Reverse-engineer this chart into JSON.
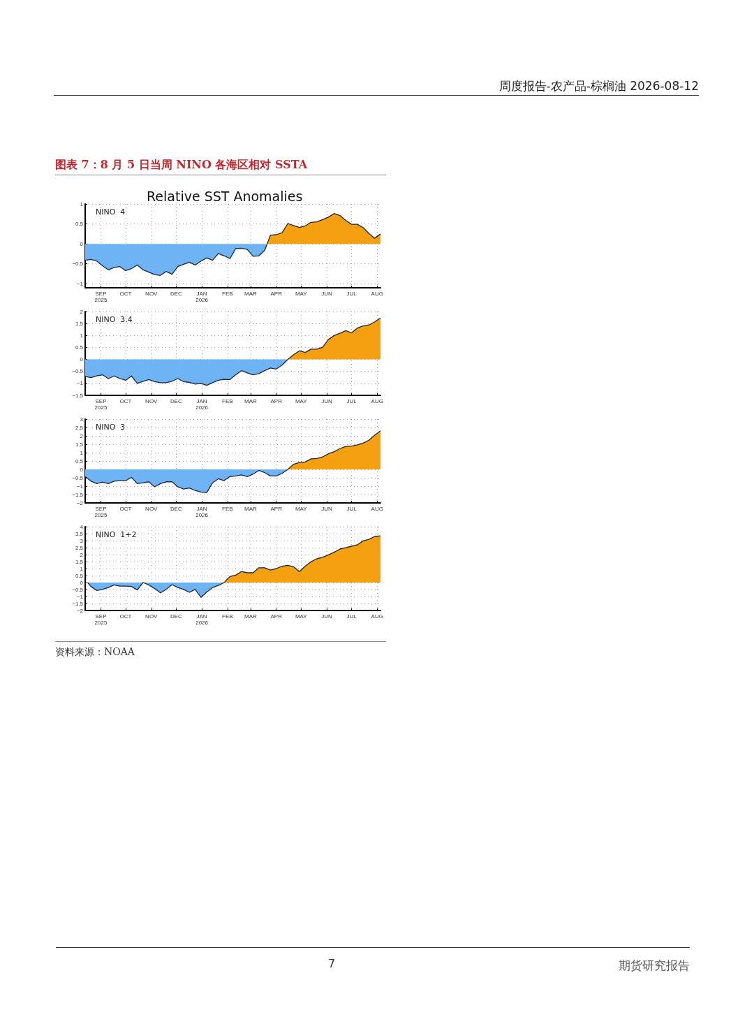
{
  "chart_data": [
    {
      "type": "area",
      "title": "Relative SST Anomalies",
      "subtitle": "NINO  4",
      "annotations": [
        "周度报告-农产品-棕榈油 2026-08-12",
        "图表 7：8 月 5 日当周 NINO 各海区相对 SSTA"
      ],
      "xlim": [
        "2025-08-13",
        "2026-08-05"
      ],
      "xticks": [
        {
          "value": "2025-09-01",
          "label": "SEP\n2025"
        },
        {
          "value": "2025-10-01",
          "label": "OCT"
        },
        {
          "value": "2025-11-01",
          "label": "NOV"
        },
        {
          "value": "2025-12-01",
          "label": "DEC"
        },
        {
          "value": "2026-01-01",
          "label": "JAN\n2026"
        },
        {
          "value": "2026-02-01",
          "label": "FEB"
        },
        {
          "value": "2026-03-01",
          "label": "MAR"
        },
        {
          "value": "2026-04-01",
          "label": "APR"
        },
        {
          "value": "2026-05-01",
          "label": "MAY"
        },
        {
          "value": "2026-06-01",
          "label": "JUN"
        },
        {
          "value": "2026-07-01",
          "label": "JUL"
        },
        {
          "value": "2026-08-01",
          "label": "AUG"
        }
      ],
      "ylim": [
        -1.1,
        1
      ],
      "yticks": [
        -1,
        -0.5,
        0,
        0.5,
        1
      ],
      "grid": true,
      "marker": "none",
      "series": [
        {
          "color": "#6eb4f4",
          "x": [
            "2025-08-13",
            "2025-08-20",
            "2025-08-27",
            "2025-09-03",
            "2025-09-10",
            "2025-09-17",
            "2025-09-24",
            "2025-10-01",
            "2025-10-08",
            "2025-10-15",
            "2025-10-22",
            "2025-10-29",
            "2025-11-05",
            "2025-11-12",
            "2025-11-19",
            "2025-11-26",
            "2025-12-03",
            "2025-12-10",
            "2025-12-17",
            "2025-12-24",
            "2025-12-31",
            "2026-01-07",
            "2026-01-14",
            "2026-01-21",
            "2026-01-28",
            "2026-02-04",
            "2026-02-11",
            "2026-02-18",
            "2026-02-25",
            "2026-03-04",
            "2026-03-11",
            "2026-03-18",
            "2026-03-21"
          ],
          "values": [
            -0.41,
            -0.39,
            -0.43,
            -0.55,
            -0.65,
            -0.59,
            -0.57,
            -0.67,
            -0.62,
            -0.53,
            -0.65,
            -0.71,
            -0.77,
            -0.79,
            -0.69,
            -0.76,
            -0.57,
            -0.51,
            -0.46,
            -0.53,
            -0.43,
            -0.35,
            -0.41,
            -0.24,
            -0.3,
            -0.37,
            -0.12,
            -0.11,
            -0.14,
            -0.31,
            -0.3,
            -0.16,
            0
          ]
        },
        {
          "color": "#f5a010",
          "x": [
            "2026-03-21",
            "2026-03-25",
            "2026-04-01",
            "2026-04-08",
            "2026-04-15",
            "2026-04-22",
            "2026-04-29",
            "2026-05-06",
            "2026-05-13",
            "2026-05-20",
            "2026-05-27",
            "2026-06-03",
            "2026-06-10",
            "2026-06-17",
            "2026-06-24",
            "2026-07-01",
            "2026-07-08",
            "2026-07-15",
            "2026-07-22",
            "2026-07-29",
            "2026-08-05"
          ],
          "values": [
            0,
            0.22,
            0.23,
            0.28,
            0.51,
            0.46,
            0.41,
            0.45,
            0.54,
            0.55,
            0.61,
            0.67,
            0.76,
            0.71,
            0.59,
            0.49,
            0.49,
            0.41,
            0.26,
            0.14,
            0.25
          ]
        }
      ]
    },
    {
      "type": "area",
      "subtitle": "NINO  3.4",
      "xlim": [
        "2025-08-13",
        "2026-08-05"
      ],
      "xticks": [
        {
          "value": "2025-09-01",
          "label": "SEP\n2025"
        },
        {
          "value": "2025-10-01",
          "label": "OCT"
        },
        {
          "value": "2025-11-01",
          "label": "NOV"
        },
        {
          "value": "2025-12-01",
          "label": "DEC"
        },
        {
          "value": "2026-01-01",
          "label": "JAN\n2026"
        },
        {
          "value": "2026-02-01",
          "label": "FEB"
        },
        {
          "value": "2026-03-01",
          "label": "MAR"
        },
        {
          "value": "2026-04-01",
          "label": "APR"
        },
        {
          "value": "2026-05-01",
          "label": "MAY"
        },
        {
          "value": "2026-06-01",
          "label": "JUN"
        },
        {
          "value": "2026-07-01",
          "label": "JUL"
        },
        {
          "value": "2026-08-01",
          "label": "AUG"
        }
      ],
      "ylim": [
        -1.5,
        2
      ],
      "yticks": [
        -1.5,
        -1,
        -0.5,
        0,
        0.5,
        1,
        1.5,
        2
      ],
      "grid": true,
      "marker": "none",
      "series": [
        {
          "color": "#6eb4f4",
          "x": [
            "2025-08-13",
            "2025-08-20",
            "2025-08-27",
            "2025-09-03",
            "2025-09-10",
            "2025-09-17",
            "2025-09-24",
            "2025-10-01",
            "2025-10-08",
            "2025-10-15",
            "2025-10-22",
            "2025-10-29",
            "2025-11-05",
            "2025-11-12",
            "2025-11-19",
            "2025-11-26",
            "2025-12-03",
            "2025-12-10",
            "2025-12-17",
            "2025-12-24",
            "2025-12-31",
            "2026-01-07",
            "2026-01-14",
            "2026-01-21",
            "2026-01-28",
            "2026-02-04",
            "2026-02-11",
            "2026-02-18",
            "2026-02-25",
            "2026-03-04",
            "2026-03-11",
            "2026-03-18",
            "2026-03-25",
            "2026-04-01",
            "2026-04-08",
            "2026-04-15"
          ],
          "values": [
            -0.71,
            -0.76,
            -0.69,
            -0.64,
            -0.8,
            -0.69,
            -0.8,
            -0.87,
            -0.69,
            -1,
            -0.91,
            -0.84,
            -0.93,
            -0.97,
            -0.97,
            -0.91,
            -0.8,
            -0.93,
            -0.96,
            -1.03,
            -1,
            -1.08,
            -0.97,
            -0.87,
            -0.83,
            -0.84,
            -0.64,
            -0.47,
            -0.56,
            -0.64,
            -0.59,
            -0.47,
            -0.36,
            -0.4,
            -0.24,
            0
          ]
        },
        {
          "color": "#f5a010",
          "x": [
            "2026-04-15",
            "2026-04-22",
            "2026-04-29",
            "2026-05-06",
            "2026-05-13",
            "2026-05-20",
            "2026-05-27",
            "2026-06-03",
            "2026-06-10",
            "2026-06-17",
            "2026-06-24",
            "2026-07-01",
            "2026-07-08",
            "2026-07-15",
            "2026-07-22",
            "2026-07-29",
            "2026-08-05"
          ],
          "values": [
            0,
            0.2,
            0.36,
            0.29,
            0.43,
            0.43,
            0.51,
            0.83,
            1,
            1.09,
            1.2,
            1.11,
            1.31,
            1.4,
            1.44,
            1.57,
            1.73
          ]
        }
      ]
    },
    {
      "type": "area",
      "subtitle": "NINO  3",
      "xlim": [
        "2025-08-13",
        "2026-08-05"
      ],
      "xticks": [
        {
          "value": "2025-09-01",
          "label": "SEP\n2025"
        },
        {
          "value": "2025-10-01",
          "label": "OCT"
        },
        {
          "value": "2025-11-01",
          "label": "NOV"
        },
        {
          "value": "2025-12-01",
          "label": "DEC"
        },
        {
          "value": "2026-01-01",
          "label": "JAN\n2026"
        },
        {
          "value": "2026-02-01",
          "label": "FEB"
        },
        {
          "value": "2026-03-01",
          "label": "MAR"
        },
        {
          "value": "2026-04-01",
          "label": "APR"
        },
        {
          "value": "2026-05-01",
          "label": "MAY"
        },
        {
          "value": "2026-06-01",
          "label": "JUN"
        },
        {
          "value": "2026-07-01",
          "label": "JUL"
        },
        {
          "value": "2026-08-01",
          "label": "AUG"
        }
      ],
      "ylim": [
        -2,
        3
      ],
      "yticks": [
        -2,
        -1.5,
        -1,
        -0.5,
        0,
        0.5,
        1,
        1.5,
        2,
        2.5,
        3
      ],
      "grid": true,
      "marker": "none",
      "series": [
        {
          "color": "#6eb4f4",
          "x": [
            "2025-08-13",
            "2025-08-20",
            "2025-08-27",
            "2025-09-03",
            "2025-09-10",
            "2025-09-17",
            "2025-09-24",
            "2025-10-01",
            "2025-10-08",
            "2025-10-15",
            "2025-10-22",
            "2025-10-29",
            "2025-11-05",
            "2025-11-12",
            "2025-11-19",
            "2025-11-26",
            "2025-12-03",
            "2025-12-10",
            "2025-12-17",
            "2025-12-24",
            "2025-12-31",
            "2026-01-07",
            "2026-01-14",
            "2026-01-21",
            "2026-01-28",
            "2026-02-04",
            "2026-02-11",
            "2026-02-18",
            "2026-02-25",
            "2026-03-04",
            "2026-03-11",
            "2026-03-18",
            "2026-03-25",
            "2026-04-01",
            "2026-04-08",
            "2026-04-15"
          ],
          "values": [
            -0.43,
            -0.7,
            -0.85,
            -0.76,
            -0.85,
            -0.7,
            -0.67,
            -0.67,
            -0.48,
            -0.85,
            -0.8,
            -0.74,
            -1.04,
            -0.85,
            -0.74,
            -0.74,
            -1.04,
            -1.17,
            -1.11,
            -1.26,
            -1.35,
            -1.38,
            -0.8,
            -0.56,
            -0.67,
            -0.43,
            -0.39,
            -0.33,
            -0.43,
            -0.28,
            -0.06,
            -0.19,
            -0.39,
            -0.39,
            -0.24,
            0
          ]
        },
        {
          "color": "#f5a010",
          "x": [
            "2026-04-15",
            "2026-04-22",
            "2026-04-29",
            "2026-05-06",
            "2026-05-13",
            "2026-05-20",
            "2026-05-27",
            "2026-06-03",
            "2026-06-10",
            "2026-06-17",
            "2026-06-24",
            "2026-07-01",
            "2026-07-08",
            "2026-07-15",
            "2026-07-22",
            "2026-07-29",
            "2026-08-05"
          ],
          "values": [
            0,
            0.31,
            0.41,
            0.44,
            0.63,
            0.65,
            0.74,
            0.93,
            1.06,
            1.24,
            1.37,
            1.39,
            1.46,
            1.57,
            1.74,
            2.04,
            2.3
          ]
        }
      ]
    },
    {
      "type": "area",
      "subtitle": "NINO  1+2",
      "annotations": [
        "资料来源：NOAA",
        "7",
        "期货研究报告"
      ],
      "xlim": [
        "2025-08-13",
        "2026-08-05"
      ],
      "xticks": [
        {
          "value": "2025-09-01",
          "label": "SEP\n2025"
        },
        {
          "value": "2025-10-01",
          "label": "OCT"
        },
        {
          "value": "2025-11-01",
          "label": "NOV"
        },
        {
          "value": "2025-12-01",
          "label": "DEC"
        },
        {
          "value": "2026-01-01",
          "label": "JAN\n2026"
        },
        {
          "value": "2026-02-01",
          "label": "FEB"
        },
        {
          "value": "2026-03-01",
          "label": "MAR"
        },
        {
          "value": "2026-04-01",
          "label": "APR"
        },
        {
          "value": "2026-05-01",
          "label": "MAY"
        },
        {
          "value": "2026-06-01",
          "label": "JUN"
        },
        {
          "value": "2026-07-01",
          "label": "JUL"
        },
        {
          "value": "2026-08-01",
          "label": "AUG"
        }
      ],
      "ylim": [
        -2,
        4
      ],
      "yticks": [
        -2,
        -1.5,
        -1,
        -0.5,
        0,
        0.5,
        1,
        1.5,
        2,
        2.5,
        3,
        3.5,
        4
      ],
      "grid": true,
      "marker": "none",
      "series": [
        {
          "color": "#6eb4f4",
          "x": [
            "2025-08-16",
            "2025-08-20",
            "2025-08-27",
            "2025-09-03",
            "2025-09-10",
            "2025-09-17",
            "2025-09-24",
            "2025-10-01",
            "2025-10-08",
            "2025-10-15",
            "2025-10-22",
            "2025-10-29",
            "2025-11-05",
            "2025-11-12",
            "2025-11-19",
            "2025-11-26",
            "2025-12-03",
            "2025-12-10",
            "2025-12-17",
            "2025-12-24",
            "2025-12-31",
            "2026-01-07",
            "2026-01-14",
            "2026-01-21",
            "2026-01-28"
          ],
          "values": [
            0,
            -0.28,
            -0.57,
            -0.49,
            -0.36,
            -0.17,
            -0.26,
            -0.26,
            -0.28,
            -0.53,
            0,
            -0.17,
            -0.43,
            -0.74,
            -0.49,
            -0.15,
            -0.36,
            -0.49,
            -0.7,
            -0.49,
            -1.06,
            -0.68,
            -0.36,
            -0.21,
            0
          ]
        },
        {
          "color": "#f5a010",
          "x": [
            "2026-01-28",
            "2026-02-04",
            "2026-02-11",
            "2026-02-18",
            "2026-02-25",
            "2026-03-04",
            "2026-03-11",
            "2026-03-18",
            "2026-03-25",
            "2026-04-01",
            "2026-04-08",
            "2026-04-15",
            "2026-04-22",
            "2026-04-29",
            "2026-05-06",
            "2026-05-13",
            "2026-05-20",
            "2026-05-27",
            "2026-06-03",
            "2026-06-10",
            "2026-06-17",
            "2026-06-24",
            "2026-07-01",
            "2026-07-08",
            "2026-07-15",
            "2026-07-22",
            "2026-07-29",
            "2026-08-05"
          ],
          "values": [
            0,
            0.43,
            0.53,
            0.79,
            0.7,
            0.7,
            1.06,
            1.06,
            0.89,
            1,
            1.17,
            1.23,
            1.13,
            0.79,
            1.17,
            1.49,
            1.7,
            1.81,
            1.98,
            2.17,
            2.4,
            2.49,
            2.6,
            2.7,
            2.98,
            3.09,
            3.3,
            3.34
          ]
        }
      ]
    }
  ]
}
